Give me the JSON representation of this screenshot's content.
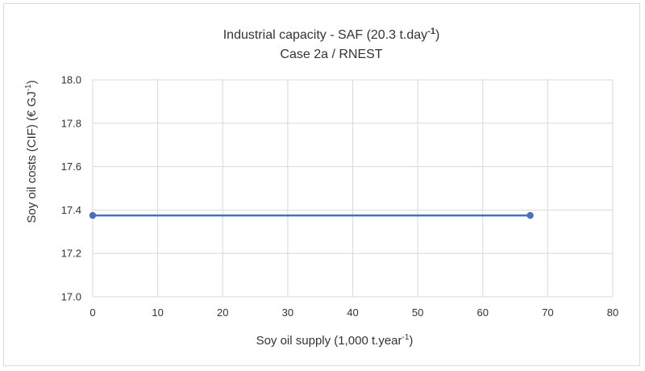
{
  "chart_data": {
    "type": "line",
    "title_line1_main": "Industrial capacity - SAF (20.3 t.day",
    "title_line1_sup": "-1",
    "title_line1_end": ")",
    "title_line2": "Case 2a / RNEST",
    "xlabel_main": "Soy oil supply (1,000 t.year",
    "xlabel_sup": "-1",
    "xlabel_end": ")",
    "ylabel_main": "Soy oil costs (CIF) (€ GJ",
    "ylabel_sup": "-1",
    "ylabel_end": ")",
    "xlim": [
      0,
      80
    ],
    "ylim": [
      17.0,
      18.0
    ],
    "x_ticks": [
      "0",
      "10",
      "20",
      "30",
      "40",
      "50",
      "60",
      "70",
      "80"
    ],
    "y_ticks": [
      "17.0",
      "17.2",
      "17.4",
      "17.6",
      "17.8",
      "18.0"
    ],
    "grid": true,
    "series": [
      {
        "color": "#4472c4",
        "points": [
          {
            "x": 0,
            "y": 17.375
          },
          {
            "x": 67.3,
            "y": 17.375
          }
        ]
      }
    ]
  }
}
